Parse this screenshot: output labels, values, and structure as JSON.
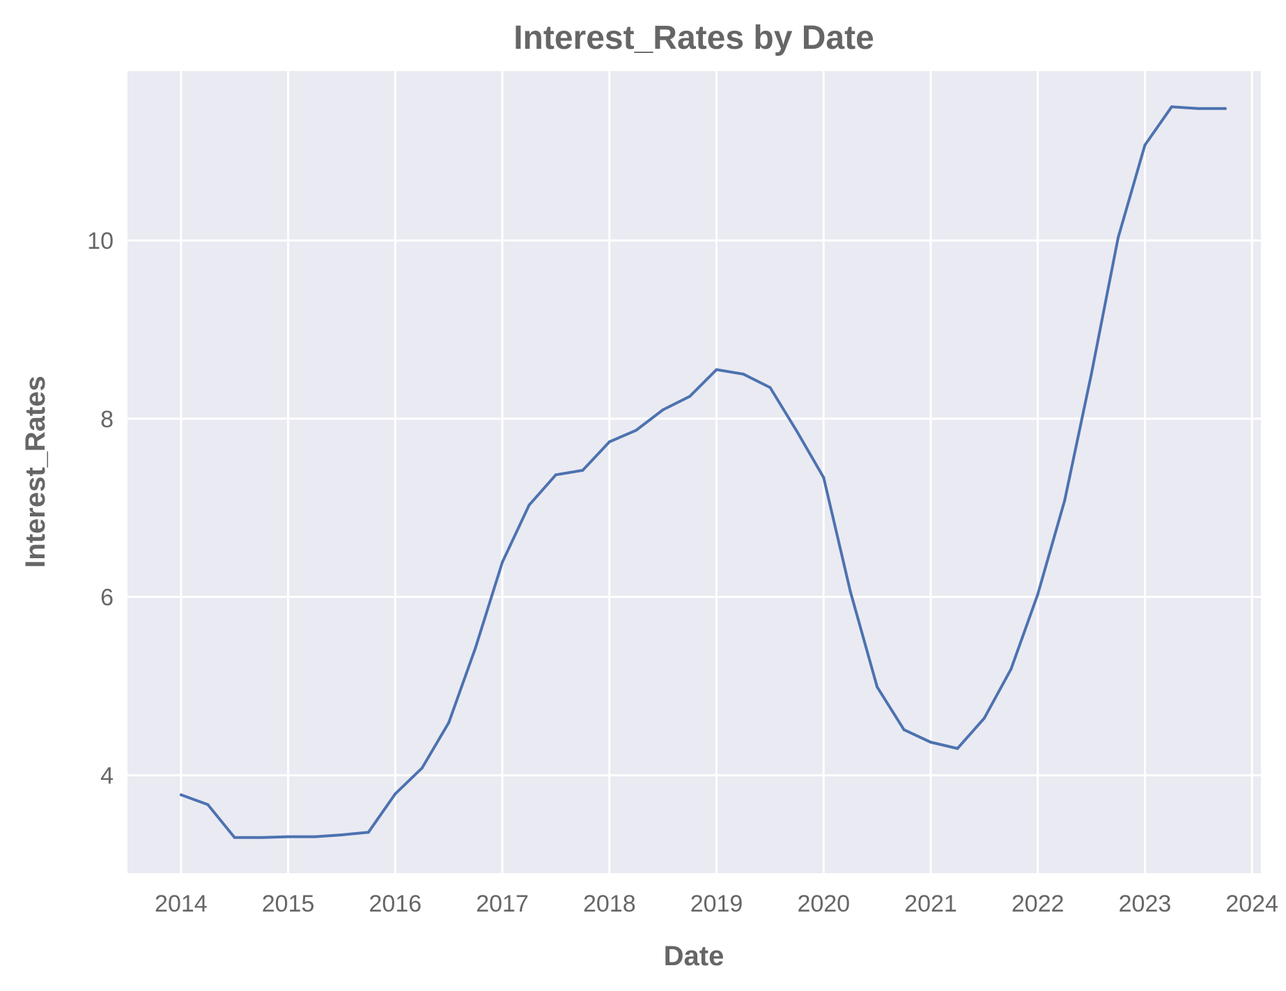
{
  "chart_data": {
    "type": "line",
    "title": "Interest_Rates by Date",
    "xlabel": "Date",
    "ylabel": "Interest_Rates",
    "x_ticks": [
      "2014",
      "2015",
      "2016",
      "2017",
      "2018",
      "2019",
      "2020",
      "2021",
      "2022",
      "2023",
      "2024"
    ],
    "y_ticks": [
      "4",
      "6",
      "8",
      "10"
    ],
    "xlim": [
      "2013-07",
      "2024-02"
    ],
    "ylim": [
      2.9,
      11.9
    ],
    "grid": true,
    "colors": {
      "background": "#eaeaf2",
      "grid": "#ffffff",
      "line": "#4c72b0",
      "text": "#666666"
    },
    "series": [
      {
        "x": [
          "2014-01",
          "2014-04",
          "2014-07",
          "2014-10",
          "2015-01",
          "2015-04",
          "2015-07",
          "2015-10",
          "2016-01",
          "2016-04",
          "2016-07",
          "2016-10",
          "2017-01",
          "2017-04",
          "2017-07",
          "2017-10",
          "2018-01",
          "2018-04",
          "2018-07",
          "2018-10",
          "2019-01",
          "2019-04",
          "2019-07",
          "2019-10",
          "2020-01",
          "2020-04",
          "2020-07",
          "2020-10",
          "2021-01",
          "2021-04",
          "2021-07",
          "2021-10",
          "2022-01",
          "2022-04",
          "2022-07",
          "2022-10",
          "2023-01",
          "2023-04",
          "2023-07",
          "2023-10"
        ],
        "values": [
          3.78,
          3.67,
          3.3,
          3.3,
          3.31,
          3.31,
          3.33,
          3.36,
          3.79,
          4.08,
          4.59,
          5.43,
          6.39,
          7.03,
          7.37,
          7.42,
          7.74,
          7.87,
          8.1,
          8.25,
          8.55,
          8.5,
          8.35,
          7.86,
          7.34,
          6.06,
          4.99,
          4.51,
          4.37,
          4.3,
          4.64,
          5.19,
          6.03,
          7.08,
          8.5,
          10.03,
          11.07,
          11.5,
          11.48,
          11.48
        ]
      }
    ]
  }
}
